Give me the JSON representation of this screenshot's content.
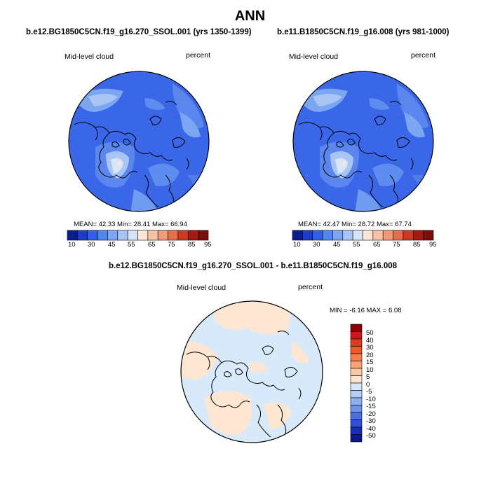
{
  "main_title": "ANN",
  "panels": [
    {
      "title": "b.e12.BG1850C5CN.f19_g16.270_SSOL.001 (yrs 1350-1399)",
      "field": "Mid-level cloud",
      "units": "percent",
      "stats": "MEAN= 42.33  Min= 28.41  Max= 66.94",
      "colorbar_ticks": [
        "10",
        "30",
        "45",
        "55",
        "65",
        "75",
        "85",
        "95"
      ]
    },
    {
      "title": "b.e11.B1850C5CN.f19_g16.008 (yrs 981-1000)",
      "field": "Mid-level cloud",
      "units": "percent",
      "stats": "MEAN= 42.47  Min= 28.72  Max= 67.74",
      "colorbar_ticks": [
        "10",
        "30",
        "45",
        "55",
        "65",
        "75",
        "85",
        "95"
      ]
    }
  ],
  "diff_panel": {
    "title": "b.e12.BG1850C5CN.f19_g16.270_SSOL.001 - b.e11.B1850C5CN.f19_g16.008",
    "field": "Mid-level cloud",
    "units": "percent",
    "stats": "MIN =  -6.16 MAX =   6.08",
    "colorbar_ticks": [
      "50",
      "40",
      "30",
      "20",
      "15",
      "10",
      "5",
      "0",
      "-5",
      "-10",
      "-15",
      "-20",
      "-30",
      "-40",
      "-50"
    ]
  },
  "colors": {
    "abs_scale": [
      "#0a1f8f",
      "#1e3cc8",
      "#3060e8",
      "#4f86f0",
      "#7aa6f2",
      "#a9c5f3",
      "#d6e5f7",
      "#fde6d6",
      "#f7c3a6",
      "#f09a78",
      "#e46d4a",
      "#cc3b23",
      "#a31a12",
      "#7a0d0d"
    ],
    "diff_scale_top_to_bottom": [
      "#8b0000",
      "#c51b1b",
      "#e03a1e",
      "#ee5a2b",
      "#f47d4a",
      "#f8a57a",
      "#fbc8a6",
      "#fde4d0",
      "#d7e6f8",
      "#b3cdf4",
      "#8db0ee",
      "#6d93ea",
      "#4a6fe3",
      "#2f4fd7",
      "#1a2fb8",
      "#0b1a86"
    ],
    "land_outline": "#000000",
    "map_base": "#3a66e8",
    "diff_base": "#d8e9fa",
    "diff_warm": "#fde6d2"
  }
}
